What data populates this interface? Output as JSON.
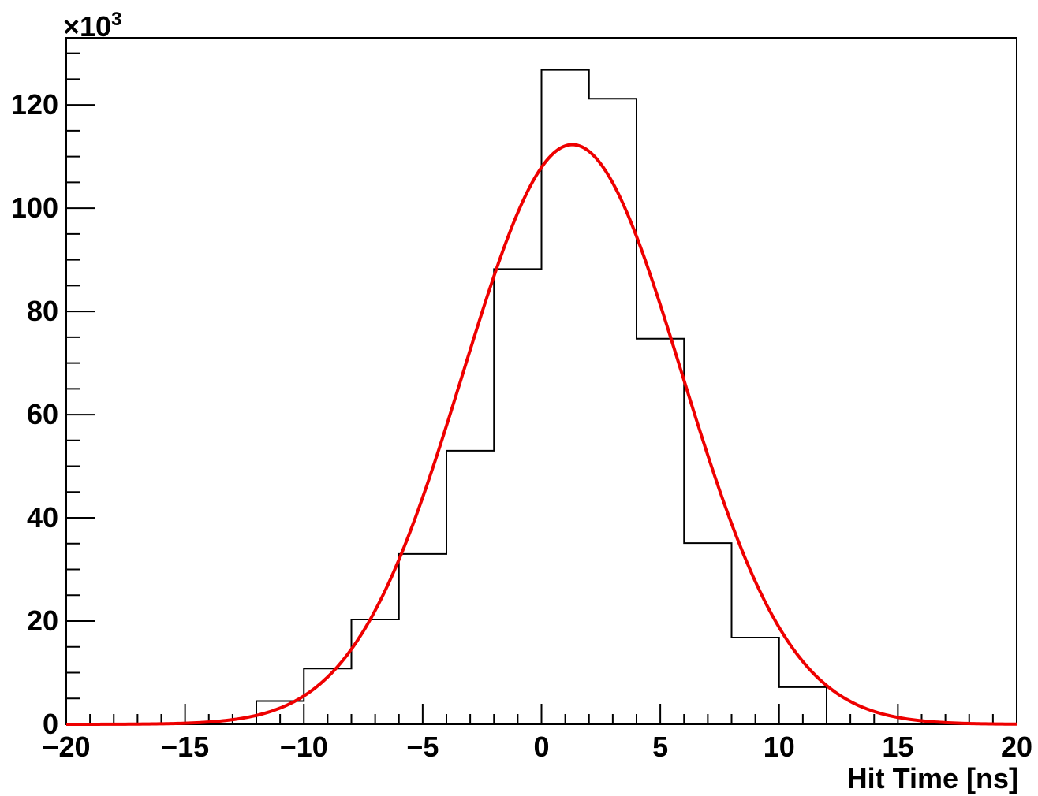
{
  "chart_data": {
    "type": "histogram",
    "xlabel": "Hit Time [ns]",
    "ylabel": "",
    "y_multiplier_label": "×10",
    "y_multiplier_exponent": "3",
    "xlim": [
      -20,
      20
    ],
    "ylim": [
      0,
      133
    ],
    "x_ticks": [
      -20,
      -15,
      -10,
      -5,
      0,
      5,
      10,
      15,
      20
    ],
    "x_tick_labels": [
      "−20",
      "−15",
      "−10",
      "−5",
      "0",
      "5",
      "10",
      "15",
      "20"
    ],
    "y_ticks": [
      0,
      20,
      40,
      60,
      80,
      100,
      120
    ],
    "y_tick_labels": [
      "0",
      "20",
      "40",
      "60",
      "80",
      "100",
      "120"
    ],
    "bin_edges": [
      -20,
      -18,
      -16,
      -14,
      -12,
      -10,
      -8,
      -6,
      -4,
      -2,
      0,
      2,
      4,
      6,
      8,
      10,
      12,
      14,
      16,
      18,
      20
    ],
    "values": [
      0,
      0,
      0,
      0,
      4.5,
      10.8,
      20.3,
      33,
      53,
      88.2,
      126.8,
      121.2,
      74.7,
      35.1,
      16.8,
      7.2,
      0,
      0,
      0,
      0
    ],
    "histogram_color": "#000000",
    "fit": {
      "type": "gaussian",
      "amplitude": 112.3,
      "mean": 1.3,
      "sigma": 4.6,
      "color": "#ee0000"
    },
    "grid": false,
    "legend": "none"
  }
}
